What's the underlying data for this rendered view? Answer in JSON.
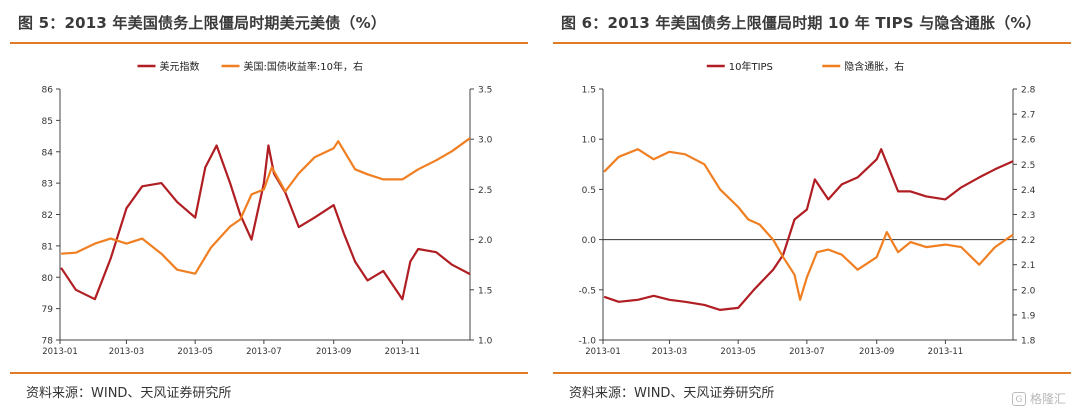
{
  "colors": {
    "dollar": "#b01e23",
    "yield": "#f07f22",
    "accent": "#e07b2a"
  },
  "panels": [
    {
      "title": "图 5：2013 年美国债务上限僵局时期美元美债（%）",
      "source": "资料来源：WIND、天风证券研究所"
    },
    {
      "title": "图 6：2013 年美国债务上限僵局时期 10 年 TIPS 与隐含通胀（%）",
      "source": "资料来源：WIND、天风证券研究所"
    }
  ],
  "watermark": {
    "icon": "gelonghui-logo-icon",
    "text": "格隆汇"
  },
  "chart_data": [
    {
      "type": "line",
      "title": "图 5：2013 年美国债务上限僵局时期美元美债（%）",
      "x_ticks": [
        "2013-01",
        "2013-03",
        "2013-05",
        "2013-07",
        "2013-09",
        "2013-11"
      ],
      "y_left": {
        "lim": [
          78,
          86
        ],
        "ticks": [
          "78",
          "79",
          "80",
          "81",
          "82",
          "83",
          "84",
          "85",
          "86"
        ]
      },
      "y_right": {
        "lim": [
          1.0,
          3.5
        ],
        "ticks": [
          "1.0",
          "1.5",
          "2.0",
          "2.5",
          "3.0",
          "3.5"
        ]
      },
      "legend_position": "top-center",
      "series": [
        {
          "name": "美元指数",
          "axis": "left",
          "color": "#b01e23",
          "x": [
            "2013-01-02",
            "2013-01-15",
            "2013-02-01",
            "2013-02-15",
            "2013-03-01",
            "2013-03-15",
            "2013-04-01",
            "2013-04-15",
            "2013-05-01",
            "2013-05-10",
            "2013-05-20",
            "2013-06-01",
            "2013-06-10",
            "2013-06-20",
            "2013-07-01",
            "2013-07-05",
            "2013-07-10",
            "2013-07-20",
            "2013-08-01",
            "2013-08-15",
            "2013-09-01",
            "2013-09-10",
            "2013-09-20",
            "2013-10-01",
            "2013-10-15",
            "2013-11-01",
            "2013-11-08",
            "2013-11-15",
            "2013-12-01",
            "2013-12-15",
            "2013-12-31"
          ],
          "y": [
            80.3,
            79.6,
            79.3,
            80.6,
            82.2,
            82.9,
            83.0,
            82.4,
            81.9,
            83.5,
            84.2,
            83.0,
            82.0,
            81.2,
            83.0,
            84.2,
            83.3,
            82.7,
            81.6,
            81.9,
            82.3,
            81.4,
            80.5,
            79.9,
            80.2,
            79.3,
            80.5,
            80.9,
            80.8,
            80.4,
            80.1
          ]
        },
        {
          "name": "美国:国债收益率:10年，右",
          "axis": "right",
          "color": "#f07f22",
          "x": [
            "2013-01-02",
            "2013-01-15",
            "2013-02-01",
            "2013-02-15",
            "2013-03-01",
            "2013-03-15",
            "2013-04-01",
            "2013-04-15",
            "2013-05-01",
            "2013-05-15",
            "2013-06-01",
            "2013-06-10",
            "2013-06-20",
            "2013-07-01",
            "2013-07-08",
            "2013-07-20",
            "2013-08-01",
            "2013-08-15",
            "2013-09-01",
            "2013-09-05",
            "2013-09-20",
            "2013-10-01",
            "2013-10-15",
            "2013-11-01",
            "2013-11-15",
            "2013-12-01",
            "2013-12-15",
            "2013-12-31"
          ],
          "y": [
            1.86,
            1.87,
            1.96,
            2.01,
            1.96,
            2.01,
            1.86,
            1.7,
            1.66,
            1.92,
            2.13,
            2.2,
            2.45,
            2.5,
            2.72,
            2.48,
            2.66,
            2.82,
            2.91,
            2.98,
            2.7,
            2.65,
            2.6,
            2.6,
            2.7,
            2.79,
            2.88,
            3.01
          ]
        }
      ]
    },
    {
      "type": "line",
      "title": "图 6：2013 年美国债务上限僵局时期 10 年 TIPS 与隐含通胀（%）",
      "x_ticks": [
        "2013-01",
        "2013-03",
        "2013-05",
        "2013-07",
        "2013-09",
        "2013-11"
      ],
      "y_left": {
        "lim": [
          -1.0,
          1.5
        ],
        "ticks": [
          "-1.0",
          "-0.5",
          "0.0",
          "0.5",
          "1.0",
          "1.5"
        ]
      },
      "y_right": {
        "lim": [
          1.8,
          2.8
        ],
        "ticks": [
          "1.8",
          "1.9",
          "2.0",
          "2.1",
          "2.2",
          "2.3",
          "2.4",
          "2.5",
          "2.6",
          "2.7",
          "2.8"
        ]
      },
      "legend_position": "top-center",
      "series": [
        {
          "name": "10年TIPS",
          "axis": "left",
          "color": "#b01e23",
          "x": [
            "2013-01-02",
            "2013-01-15",
            "2013-02-01",
            "2013-02-15",
            "2013-03-01",
            "2013-03-15",
            "2013-04-01",
            "2013-04-15",
            "2013-05-01",
            "2013-05-15",
            "2013-06-01",
            "2013-06-10",
            "2013-06-20",
            "2013-07-01",
            "2013-07-08",
            "2013-07-20",
            "2013-08-01",
            "2013-08-15",
            "2013-09-01",
            "2013-09-05",
            "2013-09-20",
            "2013-10-01",
            "2013-10-15",
            "2013-11-01",
            "2013-11-15",
            "2013-12-01",
            "2013-12-15",
            "2013-12-31"
          ],
          "y": [
            -0.57,
            -0.62,
            -0.6,
            -0.56,
            -0.6,
            -0.62,
            -0.65,
            -0.7,
            -0.68,
            -0.5,
            -0.3,
            -0.15,
            0.2,
            0.3,
            0.6,
            0.4,
            0.55,
            0.62,
            0.8,
            0.9,
            0.48,
            0.48,
            0.43,
            0.4,
            0.52,
            0.62,
            0.7,
            0.78
          ]
        },
        {
          "name": "隐含通胀，右",
          "axis": "right",
          "color": "#f07f22",
          "x": [
            "2013-01-02",
            "2013-01-15",
            "2013-02-01",
            "2013-02-15",
            "2013-03-01",
            "2013-03-15",
            "2013-04-01",
            "2013-04-15",
            "2013-05-01",
            "2013-05-10",
            "2013-05-20",
            "2013-06-01",
            "2013-06-10",
            "2013-06-20",
            "2013-06-25",
            "2013-07-01",
            "2013-07-10",
            "2013-07-20",
            "2013-08-01",
            "2013-08-15",
            "2013-09-01",
            "2013-09-10",
            "2013-09-20",
            "2013-10-01",
            "2013-10-15",
            "2013-11-01",
            "2013-11-15",
            "2013-12-01",
            "2013-12-15",
            "2013-12-31"
          ],
          "y": [
            2.47,
            2.53,
            2.56,
            2.52,
            2.55,
            2.54,
            2.5,
            2.4,
            2.33,
            2.28,
            2.26,
            2.2,
            2.13,
            2.06,
            1.96,
            2.05,
            2.15,
            2.16,
            2.14,
            2.08,
            2.13,
            2.23,
            2.15,
            2.19,
            2.17,
            2.18,
            2.17,
            2.1,
            2.17,
            2.22
          ]
        }
      ]
    }
  ]
}
